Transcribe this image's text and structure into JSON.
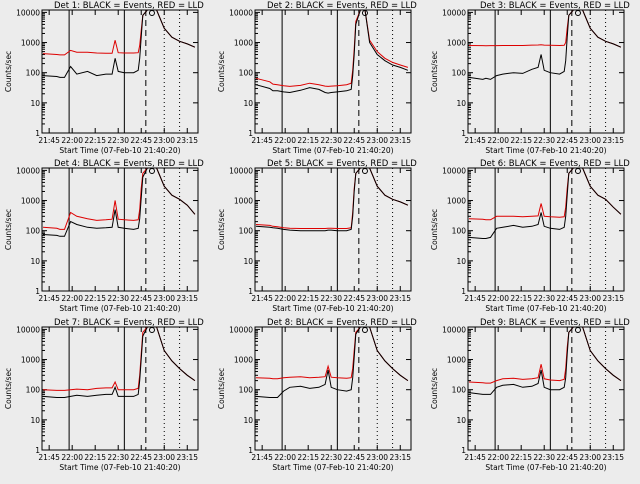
{
  "colors": {
    "background": "#ececec",
    "events": "#000000",
    "lld": "#dd0000"
  },
  "shared": {
    "ylabel": "Counts/sec",
    "xlabel": "Start Time (07-Feb-10 21:40:20)",
    "x_ticks": [
      "21:45",
      "22:00",
      "22:15",
      "22:30",
      "22:45",
      "23:00",
      "23:15"
    ],
    "y_ticks": [
      "1",
      "10",
      "100",
      "1000",
      "10000"
    ],
    "ylim": [
      1,
      12000
    ],
    "xlim": [
      "21:40:20",
      "23:22:00"
    ],
    "y_scale": "log"
  },
  "chart_data": [
    {
      "type": "line",
      "title": "Det 1: BLACK = Events, RED = LLD",
      "x": [
        "21:41",
        "21:50",
        "21:52",
        "21:55",
        "21:59",
        "22:03",
        "22:10",
        "22:16",
        "22:22",
        "22:26",
        "22:28",
        "22:30",
        "22:34",
        "22:40",
        "22:43",
        "22:44",
        "22:45",
        "22:46",
        "22:49",
        "22:52",
        "22:55",
        "23:00",
        "23:05",
        "23:10",
        "23:15",
        "23:20"
      ],
      "series": [
        {
          "name": "BLACK",
          "values": [
            80,
            75,
            70,
            70,
            160,
            90,
            110,
            80,
            90,
            90,
            300,
            110,
            100,
            100,
            120,
            300,
            1500,
            8000,
            12000,
            12000,
            12000,
            3000,
            1500,
            1100,
            900,
            700
          ]
        },
        {
          "name": "RED",
          "values": [
            430,
            400,
            390,
            390,
            550,
            480,
            480,
            450,
            440,
            440,
            1200,
            460,
            450,
            450,
            460,
            800,
            2500,
            8000,
            12000,
            12000,
            12000,
            3000,
            1500,
            1100,
            900,
            700
          ]
        }
      ]
    },
    {
      "type": "line",
      "title": "Det 2: BLACK = Events, RED = LLD",
      "x": [
        "21:41",
        "21:50",
        "21:52",
        "21:55",
        "21:59",
        "22:03",
        "22:10",
        "22:16",
        "22:22",
        "22:26",
        "22:28",
        "22:30",
        "22:34",
        "22:40",
        "22:43",
        "22:44",
        "22:45",
        "22:46",
        "22:49",
        "22:52",
        "22:55",
        "23:00",
        "23:05",
        "23:10",
        "23:15",
        "23:20"
      ],
      "series": [
        {
          "name": "BLACK",
          "values": [
            40,
            30,
            25,
            25,
            23,
            22,
            26,
            32,
            28,
            22,
            21,
            22,
            23,
            25,
            28,
            80,
            400,
            4000,
            12000,
            12000,
            1000,
            400,
            250,
            180,
            150,
            120
          ]
        },
        {
          "name": "RED",
          "values": [
            65,
            50,
            42,
            40,
            37,
            35,
            38,
            45,
            40,
            36,
            35,
            36,
            37,
            40,
            45,
            120,
            600,
            5000,
            12000,
            12000,
            1200,
            500,
            300,
            220,
            180,
            150
          ]
        }
      ]
    },
    {
      "type": "line",
      "title": "Det 3: BLACK = Events, RED = LLD",
      "x": [
        "21:41",
        "21:50",
        "21:52",
        "21:55",
        "21:59",
        "22:03",
        "22:10",
        "22:16",
        "22:22",
        "22:26",
        "22:28",
        "22:30",
        "22:34",
        "22:40",
        "22:43",
        "22:44",
        "22:45",
        "22:46",
        "22:49",
        "22:52",
        "22:55",
        "23:00",
        "23:05",
        "23:10",
        "23:15",
        "23:20"
      ],
      "series": [
        {
          "name": "BLACK",
          "values": [
            70,
            60,
            65,
            60,
            80,
            90,
            100,
            95,
            130,
            150,
            400,
            120,
            100,
            90,
            110,
            250,
            1500,
            8000,
            12000,
            12000,
            12000,
            3000,
            1500,
            1100,
            900,
            700
          ]
        },
        {
          "name": "RED",
          "values": [
            800,
            790,
            780,
            790,
            790,
            800,
            800,
            800,
            820,
            830,
            850,
            820,
            810,
            800,
            810,
            1000,
            3000,
            8000,
            12000,
            12000,
            12000,
            3000,
            1500,
            1100,
            900,
            700
          ]
        }
      ]
    },
    {
      "type": "line",
      "title": "Det 4: BLACK = Events, RED = LLD",
      "x": [
        "21:41",
        "21:50",
        "21:52",
        "21:55",
        "21:59",
        "22:03",
        "22:10",
        "22:16",
        "22:22",
        "22:26",
        "22:28",
        "22:30",
        "22:34",
        "22:40",
        "22:43",
        "22:44",
        "22:45",
        "22:46",
        "22:49",
        "22:52",
        "22:55",
        "23:00",
        "23:05",
        "23:10",
        "23:15",
        "23:20"
      ],
      "series": [
        {
          "name": "BLACK",
          "values": [
            75,
            70,
            65,
            65,
            200,
            160,
            130,
            120,
            125,
            130,
            500,
            130,
            120,
            110,
            120,
            250,
            1200,
            6000,
            12000,
            12000,
            12000,
            3000,
            1500,
            1100,
            700,
            350
          ]
        },
        {
          "name": "RED",
          "values": [
            130,
            120,
            110,
            110,
            400,
            300,
            250,
            220,
            230,
            240,
            1000,
            240,
            230,
            220,
            230,
            500,
            2500,
            8000,
            12000,
            12000,
            12000,
            3000,
            1500,
            1100,
            700,
            350
          ]
        }
      ]
    },
    {
      "type": "line",
      "title": "Det 5: BLACK = Events, RED = LLD",
      "x": [
        "21:41",
        "21:50",
        "21:52",
        "21:55",
        "21:59",
        "22:03",
        "22:10",
        "22:16",
        "22:22",
        "22:26",
        "22:28",
        "22:30",
        "22:34",
        "22:40",
        "22:43",
        "22:44",
        "22:45",
        "22:46",
        "22:49",
        "22:52",
        "22:55",
        "23:00",
        "23:05",
        "23:10",
        "23:15",
        "23:20"
      ],
      "series": [
        {
          "name": "BLACK",
          "values": [
            140,
            130,
            125,
            120,
            110,
            105,
            100,
            100,
            100,
            100,
            105,
            105,
            100,
            100,
            110,
            300,
            2000,
            8000,
            12000,
            12000,
            12000,
            3000,
            1500,
            1100,
            900,
            700
          ]
        },
        {
          "name": "RED",
          "values": [
            160,
            150,
            140,
            135,
            125,
            120,
            118,
            118,
            118,
            118,
            120,
            120,
            118,
            118,
            125,
            400,
            2500,
            8000,
            12000,
            12000,
            12000,
            3000,
            1500,
            1100,
            900,
            700
          ]
        }
      ]
    },
    {
      "type": "line",
      "title": "Det 6: BLACK = Events, RED = LLD",
      "x": [
        "21:41",
        "21:50",
        "21:52",
        "21:55",
        "21:59",
        "22:03",
        "22:10",
        "22:16",
        "22:22",
        "22:26",
        "22:28",
        "22:30",
        "22:34",
        "22:40",
        "22:43",
        "22:44",
        "22:45",
        "22:46",
        "22:49",
        "22:52",
        "22:55",
        "23:00",
        "23:05",
        "23:10",
        "23:15",
        "23:20"
      ],
      "series": [
        {
          "name": "BLACK",
          "values": [
            60,
            55,
            55,
            60,
            120,
            130,
            150,
            130,
            140,
            160,
            400,
            140,
            120,
            110,
            130,
            300,
            1500,
            8000,
            12000,
            12000,
            12000,
            3000,
            1500,
            1100,
            600,
            350
          ]
        },
        {
          "name": "RED",
          "values": [
            250,
            240,
            230,
            230,
            300,
            300,
            300,
            290,
            300,
            310,
            800,
            300,
            290,
            280,
            290,
            600,
            2500,
            8000,
            12000,
            12000,
            12000,
            3000,
            1500,
            1100,
            600,
            350
          ]
        }
      ]
    },
    {
      "type": "line",
      "title": "Det 7: BLACK = Events, RED = LLD",
      "x": [
        "21:41",
        "21:50",
        "21:52",
        "21:55",
        "21:59",
        "22:03",
        "22:10",
        "22:16",
        "22:22",
        "22:26",
        "22:28",
        "22:30",
        "22:34",
        "22:40",
        "22:43",
        "22:44",
        "22:45",
        "22:46",
        "22:49",
        "22:52",
        "22:55",
        "23:00",
        "23:05",
        "23:10",
        "23:15",
        "23:20"
      ],
      "series": [
        {
          "name": "BLACK",
          "values": [
            60,
            55,
            55,
            55,
            60,
            65,
            60,
            65,
            70,
            70,
            120,
            60,
            60,
            60,
            70,
            200,
            1000,
            6000,
            12000,
            12000,
            12000,
            2000,
            900,
            500,
            300,
            200
          ]
        },
        {
          "name": "RED",
          "values": [
            100,
            95,
            95,
            95,
            100,
            105,
            100,
            110,
            115,
            115,
            180,
            100,
            100,
            100,
            110,
            300,
            1500,
            8000,
            12000,
            12000,
            12000,
            2000,
            900,
            500,
            300,
            200
          ]
        }
      ]
    },
    {
      "type": "line",
      "title": "Det 8: BLACK = Events, RED = LLD",
      "x": [
        "21:41",
        "21:50",
        "21:52",
        "21:55",
        "21:59",
        "22:03",
        "22:10",
        "22:16",
        "22:22",
        "22:26",
        "22:28",
        "22:30",
        "22:34",
        "22:40",
        "22:43",
        "22:44",
        "22:45",
        "22:46",
        "22:49",
        "22:52",
        "22:55",
        "23:00",
        "23:05",
        "23:10",
        "23:15",
        "23:20"
      ],
      "series": [
        {
          "name": "BLACK",
          "values": [
            60,
            55,
            55,
            55,
            90,
            120,
            130,
            110,
            120,
            150,
            450,
            120,
            100,
            90,
            100,
            250,
            1200,
            7000,
            12000,
            12000,
            12000,
            2000,
            900,
            500,
            300,
            200
          ]
        },
        {
          "name": "RED",
          "values": [
            250,
            240,
            230,
            230,
            250,
            260,
            270,
            250,
            260,
            270,
            600,
            260,
            250,
            240,
            250,
            500,
            2000,
            8000,
            12000,
            12000,
            12000,
            2000,
            900,
            500,
            300,
            200
          ]
        }
      ]
    },
    {
      "type": "line",
      "title": "Det 9: BLACK = Events, RED = LLD",
      "x": [
        "21:41",
        "21:50",
        "21:52",
        "21:55",
        "21:59",
        "22:03",
        "22:10",
        "22:16",
        "22:22",
        "22:26",
        "22:28",
        "22:30",
        "22:34",
        "22:40",
        "22:43",
        "22:44",
        "22:45",
        "22:46",
        "22:49",
        "22:52",
        "22:55",
        "23:00",
        "23:05",
        "23:10",
        "23:15",
        "23:20"
      ],
      "series": [
        {
          "name": "BLACK",
          "values": [
            80,
            70,
            70,
            70,
            120,
            140,
            150,
            120,
            130,
            160,
            450,
            120,
            100,
            100,
            120,
            250,
            1500,
            8000,
            12000,
            12000,
            12000,
            2000,
            900,
            500,
            300,
            200
          ]
        },
        {
          "name": "RED",
          "values": [
            180,
            170,
            165,
            165,
            200,
            230,
            240,
            220,
            230,
            250,
            700,
            230,
            210,
            200,
            220,
            500,
            2500,
            8000,
            12000,
            12000,
            12000,
            2000,
            900,
            500,
            300,
            200
          ]
        }
      ]
    }
  ]
}
